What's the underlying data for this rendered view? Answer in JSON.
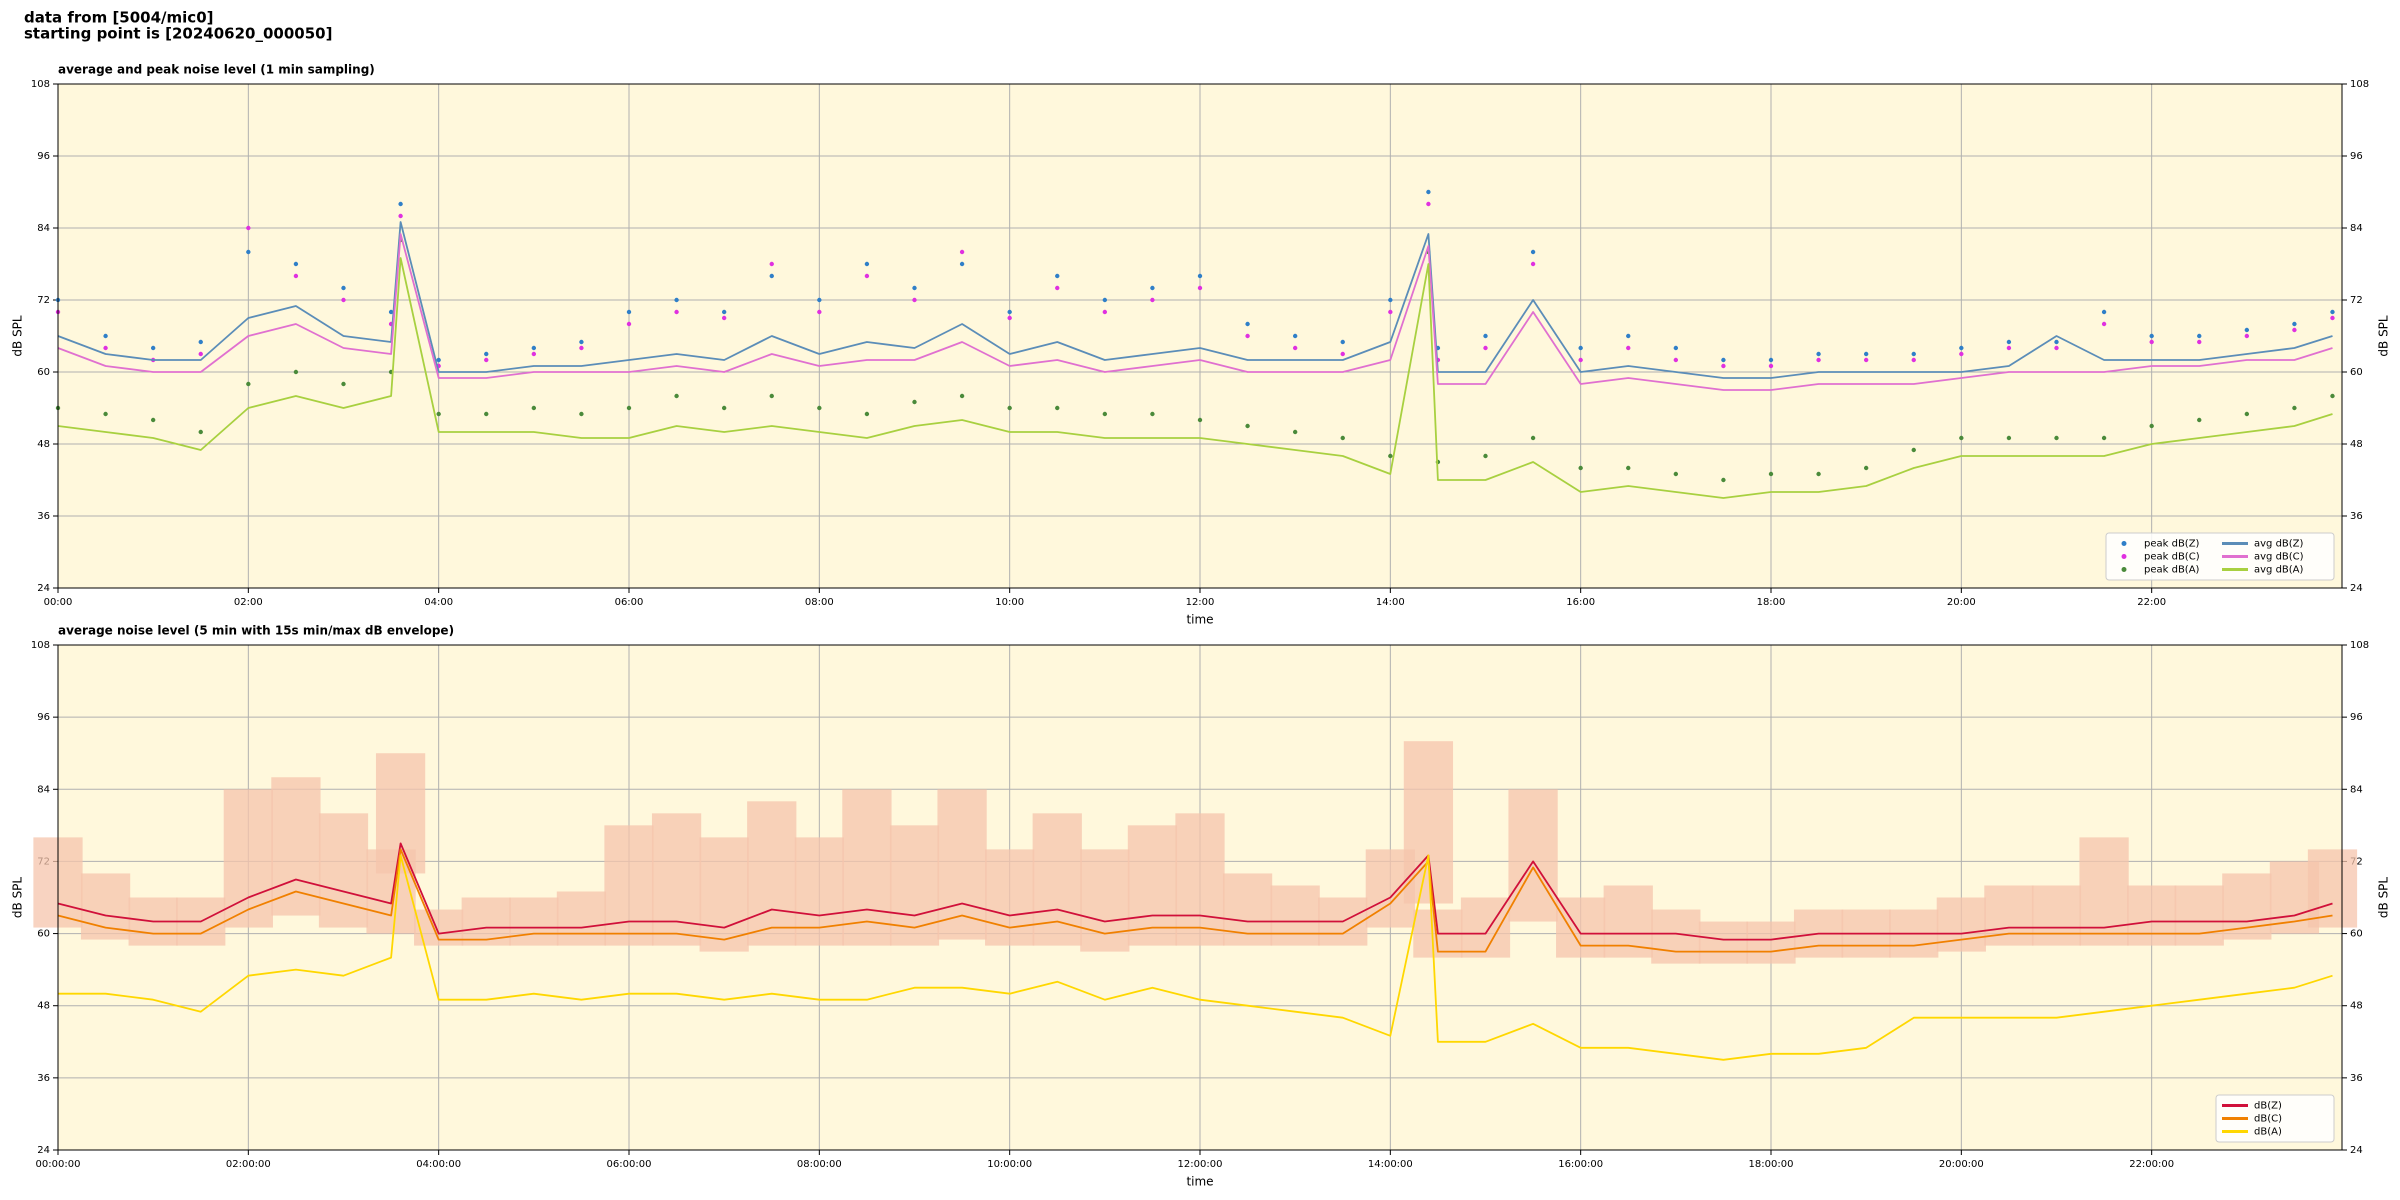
{
  "header": {
    "source": "data from [5004/mic0]",
    "start": "starting point is [20240620_000050]"
  },
  "chart_data": [
    {
      "type": "line",
      "title": "average and peak noise level (1 min sampling)",
      "x_label": "time",
      "y_label": "dB SPL",
      "xlim": [
        0,
        24
      ],
      "ylim": [
        24,
        108
      ],
      "xticks": [
        {
          "value": 0,
          "label": "00:00"
        },
        {
          "value": 2,
          "label": "02:00"
        },
        {
          "value": 4,
          "label": "04:00"
        },
        {
          "value": 6,
          "label": "06:00"
        },
        {
          "value": 8,
          "label": "08:00"
        },
        {
          "value": 10,
          "label": "10:00"
        },
        {
          "value": 12,
          "label": "12:00"
        },
        {
          "value": 14,
          "label": "14:00"
        },
        {
          "value": 16,
          "label": "16:00"
        },
        {
          "value": 18,
          "label": "18:00"
        },
        {
          "value": 20,
          "label": "20:00"
        },
        {
          "value": 22,
          "label": "22:00"
        }
      ],
      "yticks": [
        24,
        36,
        48,
        60,
        72,
        84,
        96,
        108
      ],
      "grid": true,
      "background": "#fff8dc",
      "legend": "lower right",
      "legend_columns": 2,
      "x": [
        0,
        0.5,
        1,
        1.5,
        2,
        2.5,
        3,
        3.5,
        3.6,
        4,
        4.5,
        5,
        5.5,
        6,
        6.5,
        7,
        7.5,
        8,
        8.5,
        9,
        9.5,
        10,
        10.5,
        11,
        11.5,
        12,
        12.5,
        13,
        13.5,
        14,
        14.4,
        14.5,
        15,
        15.5,
        16,
        16.5,
        17,
        17.5,
        18,
        18.5,
        19,
        19.5,
        20,
        20.5,
        21,
        21.5,
        22,
        22.5,
        23,
        23.5,
        23.9
      ],
      "series": [
        {
          "name": "peak dB(Z)",
          "mark": "point",
          "color": "#2f7fc8",
          "values": [
            72,
            66,
            64,
            65,
            80,
            78,
            74,
            70,
            88,
            62,
            63,
            64,
            65,
            70,
            72,
            70,
            76,
            72,
            78,
            74,
            78,
            70,
            76,
            72,
            74,
            76,
            68,
            66,
            65,
            72,
            90,
            64,
            66,
            80,
            64,
            66,
            64,
            62,
            62,
            63,
            63,
            63,
            64,
            65,
            65,
            70,
            66,
            66,
            67,
            68,
            70
          ]
        },
        {
          "name": "peak dB(C)",
          "mark": "point",
          "color": "#e030e0",
          "values": [
            70,
            64,
            62,
            63,
            84,
            76,
            72,
            68,
            86,
            61,
            62,
            63,
            64,
            68,
            70,
            69,
            78,
            70,
            76,
            72,
            80,
            69,
            74,
            70,
            72,
            74,
            66,
            64,
            63,
            70,
            88,
            62,
            64,
            78,
            62,
            64,
            62,
            61,
            61,
            62,
            62,
            62,
            63,
            64,
            64,
            68,
            65,
            65,
            66,
            67,
            69
          ]
        },
        {
          "name": "peak dB(A)",
          "mark": "point",
          "color": "#4a8a3a",
          "values": [
            54,
            53,
            52,
            50,
            58,
            60,
            58,
            60,
            82,
            53,
            53,
            54,
            53,
            54,
            56,
            54,
            56,
            54,
            53,
            55,
            56,
            54,
            54,
            53,
            53,
            52,
            51,
            50,
            49,
            46,
            80,
            45,
            46,
            49,
            44,
            44,
            43,
            42,
            43,
            43,
            44,
            47,
            49,
            49,
            49,
            49,
            51,
            52,
            53,
            54,
            56
          ]
        },
        {
          "name": "avg dB(Z)",
          "mark": "line",
          "color": "#5b8db8",
          "values": [
            66,
            63,
            62,
            62,
            69,
            71,
            66,
            65,
            85,
            60,
            60,
            61,
            61,
            62,
            63,
            62,
            66,
            63,
            65,
            64,
            68,
            63,
            65,
            62,
            63,
            64,
            62,
            62,
            62,
            65,
            83,
            60,
            60,
            72,
            60,
            61,
            60,
            59,
            59,
            60,
            60,
            60,
            60,
            61,
            66,
            62,
            62,
            62,
            63,
            64,
            66
          ]
        },
        {
          "name": "avg dB(C)",
          "mark": "line",
          "color": "#e070d0",
          "values": [
            64,
            61,
            60,
            60,
            66,
            68,
            64,
            63,
            83,
            59,
            59,
            60,
            60,
            60,
            61,
            60,
            63,
            61,
            62,
            62,
            65,
            61,
            62,
            60,
            61,
            62,
            60,
            60,
            60,
            62,
            81,
            58,
            58,
            70,
            58,
            59,
            58,
            57,
            57,
            58,
            58,
            58,
            59,
            60,
            60,
            60,
            61,
            61,
            62,
            62,
            64
          ]
        },
        {
          "name": "avg dB(A)",
          "mark": "line",
          "color": "#a8d040",
          "values": [
            51,
            50,
            49,
            47,
            54,
            56,
            54,
            56,
            79,
            50,
            50,
            50,
            49,
            49,
            51,
            50,
            51,
            50,
            49,
            51,
            52,
            50,
            50,
            49,
            49,
            49,
            48,
            47,
            46,
            43,
            78,
            42,
            42,
            45,
            40,
            41,
            40,
            39,
            40,
            40,
            41,
            44,
            46,
            46,
            46,
            46,
            48,
            49,
            50,
            51,
            53
          ]
        }
      ]
    },
    {
      "type": "line",
      "title": "average noise level (5 min with 15s min/max dB envelope)",
      "x_label": "time",
      "y_label": "dB SPL",
      "xlim": [
        0,
        24
      ],
      "ylim": [
        24,
        108
      ],
      "xticks": [
        {
          "value": 0,
          "label": "00:00:00"
        },
        {
          "value": 2,
          "label": "02:00:00"
        },
        {
          "value": 4,
          "label": "04:00:00"
        },
        {
          "value": 6,
          "label": "06:00:00"
        },
        {
          "value": 8,
          "label": "08:00:00"
        },
        {
          "value": 10,
          "label": "10:00:00"
        },
        {
          "value": 12,
          "label": "12:00:00"
        },
        {
          "value": 14,
          "label": "14:00:00"
        },
        {
          "value": 16,
          "label": "16:00:00"
        },
        {
          "value": 18,
          "label": "18:00:00"
        },
        {
          "value": 20,
          "label": "20:00:00"
        },
        {
          "value": 22,
          "label": "22:00:00"
        }
      ],
      "yticks": [
        24,
        36,
        48,
        60,
        72,
        84,
        96,
        108
      ],
      "grid": true,
      "background": "#fff8dc",
      "legend": "lower right",
      "legend_columns": 1,
      "x": [
        0,
        0.5,
        1,
        1.5,
        2,
        2.5,
        3,
        3.5,
        3.6,
        4,
        4.5,
        5,
        5.5,
        6,
        6.5,
        7,
        7.5,
        8,
        8.5,
        9,
        9.5,
        10,
        10.5,
        11,
        11.5,
        12,
        12.5,
        13,
        13.5,
        14,
        14.4,
        14.5,
        15,
        15.5,
        16,
        16.5,
        17,
        17.5,
        18,
        18.5,
        19,
        19.5,
        20,
        20.5,
        21,
        21.5,
        22,
        22.5,
        23,
        23.5,
        23.9
      ],
      "envelope": {
        "color": "#f5c4ac",
        "low": [
          61,
          59,
          58,
          58,
          61,
          63,
          61,
          60,
          70,
          58,
          58,
          58,
          58,
          58,
          58,
          57,
          58,
          58,
          58,
          58,
          59,
          58,
          58,
          57,
          58,
          58,
          58,
          58,
          58,
          61,
          65,
          56,
          56,
          62,
          56,
          56,
          55,
          55,
          55,
          56,
          56,
          56,
          57,
          58,
          58,
          58,
          58,
          58,
          59,
          60,
          61
        ],
        "high": [
          76,
          70,
          66,
          66,
          84,
          86,
          80,
          74,
          90,
          64,
          66,
          66,
          67,
          78,
          80,
          76,
          82,
          76,
          84,
          78,
          84,
          74,
          80,
          74,
          78,
          80,
          70,
          68,
          66,
          74,
          92,
          64,
          66,
          84,
          66,
          68,
          64,
          62,
          62,
          64,
          64,
          64,
          66,
          68,
          68,
          76,
          68,
          68,
          70,
          72,
          74
        ]
      },
      "series": [
        {
          "name": "dB(Z)",
          "mark": "line",
          "color": "#d0103a",
          "values": [
            65,
            63,
            62,
            62,
            66,
            69,
            67,
            65,
            75,
            60,
            61,
            61,
            61,
            62,
            62,
            61,
            64,
            63,
            64,
            63,
            65,
            63,
            64,
            62,
            63,
            63,
            62,
            62,
            62,
            66,
            73,
            60,
            60,
            72,
            60,
            60,
            60,
            59,
            59,
            60,
            60,
            60,
            60,
            61,
            61,
            61,
            62,
            62,
            62,
            63,
            65
          ]
        },
        {
          "name": "dB(C)",
          "mark": "line",
          "color": "#f08000",
          "values": [
            63,
            61,
            60,
            60,
            64,
            67,
            65,
            63,
            74,
            59,
            59,
            60,
            60,
            60,
            60,
            59,
            61,
            61,
            62,
            61,
            63,
            61,
            62,
            60,
            61,
            61,
            60,
            60,
            60,
            65,
            72,
            57,
            57,
            71,
            58,
            58,
            57,
            57,
            57,
            58,
            58,
            58,
            59,
            60,
            60,
            60,
            60,
            60,
            61,
            62,
            63
          ]
        },
        {
          "name": "dB(A)",
          "mark": "line",
          "color": "#ffd700",
          "values": [
            50,
            50,
            49,
            47,
            53,
            54,
            53,
            56,
            73,
            49,
            49,
            50,
            49,
            50,
            50,
            49,
            50,
            49,
            49,
            51,
            51,
            50,
            52,
            49,
            51,
            49,
            48,
            47,
            46,
            43,
            73,
            42,
            42,
            45,
            41,
            41,
            40,
            39,
            40,
            40,
            41,
            46,
            46,
            46,
            46,
            47,
            48,
            49,
            50,
            51,
            53
          ]
        }
      ]
    }
  ]
}
